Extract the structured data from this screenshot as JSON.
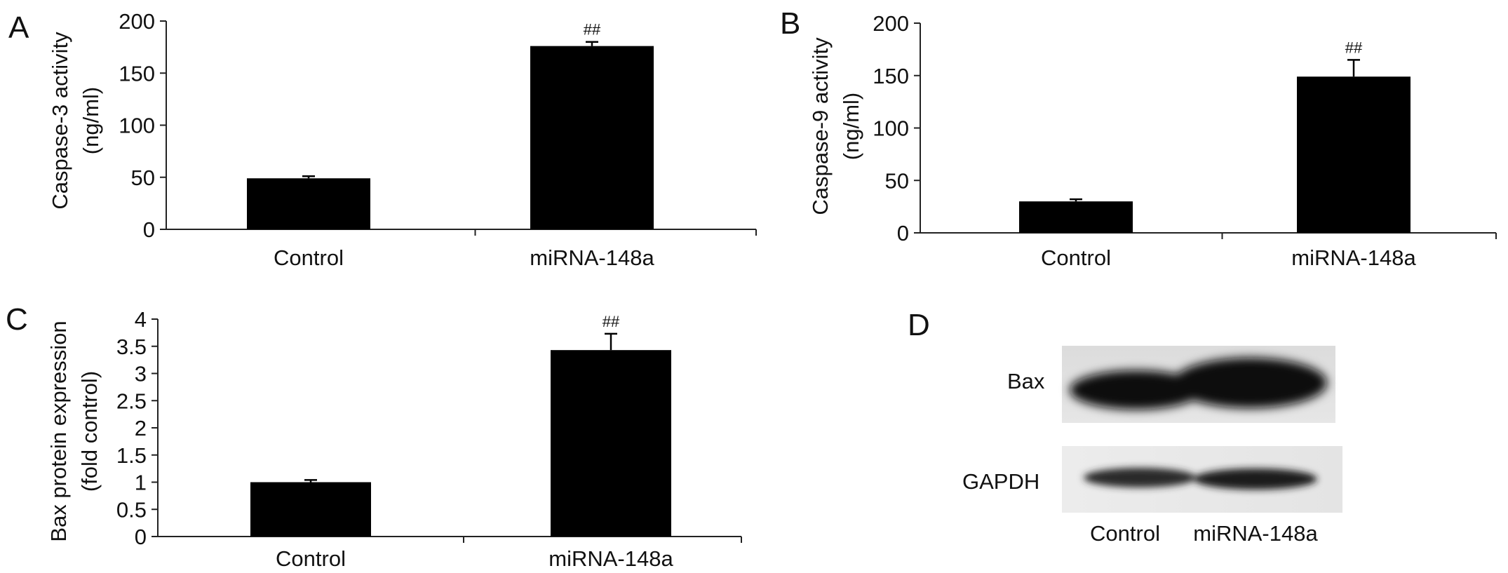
{
  "chart_data": [
    {
      "type": "bar",
      "panel": "A",
      "categories": [
        "Control",
        "miRNA-148a"
      ],
      "values": [
        49,
        176
      ],
      "errors": [
        2,
        4
      ],
      "annotations": [
        "",
        "##"
      ],
      "ylabel": [
        "Caspase-3 activity",
        "(ng/ml)"
      ],
      "yticks": [
        "0",
        "50",
        "100",
        "150",
        "200"
      ],
      "ylim": [
        0,
        200
      ],
      "color": "#000000"
    },
    {
      "type": "bar",
      "panel": "B",
      "categories": [
        "Control",
        "miRNA-148a"
      ],
      "values": [
        30,
        149
      ],
      "errors": [
        2,
        16
      ],
      "annotations": [
        "",
        "##"
      ],
      "ylabel": [
        "Caspase-9 activity",
        "(ng/ml)"
      ],
      "yticks": [
        "0",
        "50",
        "100",
        "150",
        "200"
      ],
      "ylim": [
        0,
        200
      ],
      "color": "#000000"
    },
    {
      "type": "bar",
      "panel": "C",
      "categories": [
        "Control",
        "miRNA-148a"
      ],
      "values": [
        1.0,
        3.43
      ],
      "errors": [
        0.04,
        0.3
      ],
      "annotations": [
        "",
        "##"
      ],
      "ylabel": [
        "Bax protein expression",
        "(fold control)"
      ],
      "yticks": [
        "0",
        "0.5",
        "1",
        "1.5",
        "2",
        "2.5",
        "3",
        "3.5",
        "4"
      ],
      "ylim": [
        0,
        4
      ],
      "color": "#000000"
    }
  ],
  "blot": {
    "panel": "D",
    "rows": [
      "Bax",
      "GAPDH"
    ],
    "lanes": [
      "Control",
      "miRNA-148a"
    ]
  }
}
